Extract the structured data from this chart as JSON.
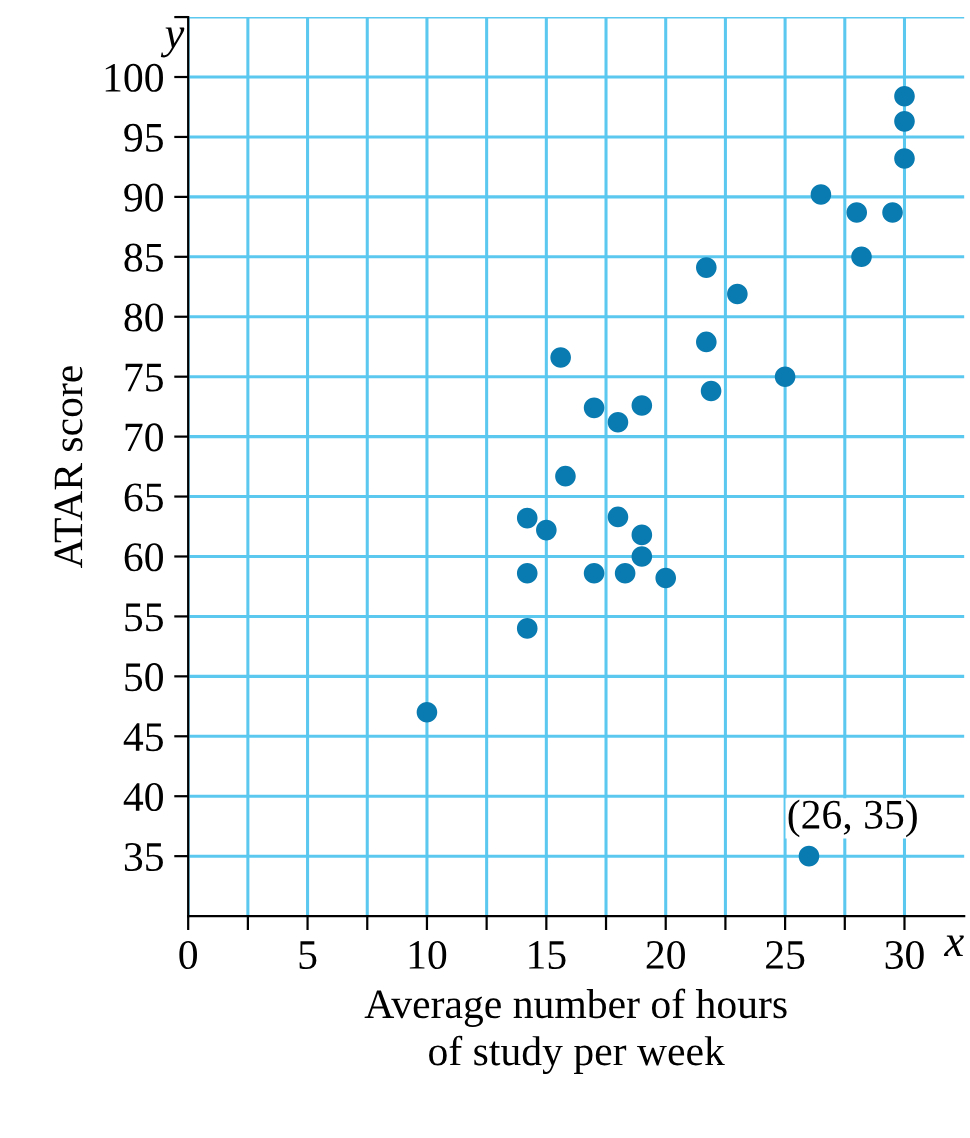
{
  "chart_data": {
    "type": "scatter",
    "xlabel": "Average number of hours\nof study per week",
    "ylabel": "ATAR score",
    "x": [
      10,
      14.2,
      14.2,
      14.2,
      15,
      15.6,
      15.8,
      17,
      17,
      18,
      18,
      18.3,
      19,
      19,
      19,
      20,
      21.7,
      21.7,
      21.9,
      23,
      25,
      26.5,
      28,
      28.2,
      29.5,
      30,
      30,
      30,
      26
    ],
    "series": [
      {
        "color": "#0a7bb0",
        "values": [
          47,
          54,
          58.6,
          63.2,
          62.2,
          76.6,
          66.7,
          72.4,
          58.6,
          63.3,
          71.2,
          58.6,
          72.6,
          61.8,
          60,
          58.2,
          84.1,
          77.9,
          73.8,
          81.9,
          75,
          90.2,
          88.7,
          85,
          88.7,
          98.4,
          96.3,
          93.2,
          35
        ]
      }
    ],
    "marker": "circle",
    "xlim": [
      0,
      32.5
    ],
    "ylim": [
      30,
      105
    ],
    "xticks": [
      0,
      {
        "value": 2.5,
        "label": null
      },
      5,
      {
        "value": 7.5,
        "label": null
      },
      10,
      {
        "value": 12.5,
        "label": null
      },
      15,
      {
        "value": 17.5,
        "label": null
      },
      20,
      {
        "value": 22.5,
        "label": null
      },
      25,
      {
        "value": 27.5,
        "label": null
      },
      30
    ],
    "yticks": [
      35,
      40,
      45,
      50,
      55,
      60,
      65,
      70,
      75,
      80,
      85,
      90,
      95,
      100,
      {
        "value": 105,
        "label": null
      }
    ],
    "grid": true,
    "annotations": [
      {
        "text": "(26, 35)",
        "x": 26,
        "y": 35
      },
      "x",
      "y"
    ]
  }
}
